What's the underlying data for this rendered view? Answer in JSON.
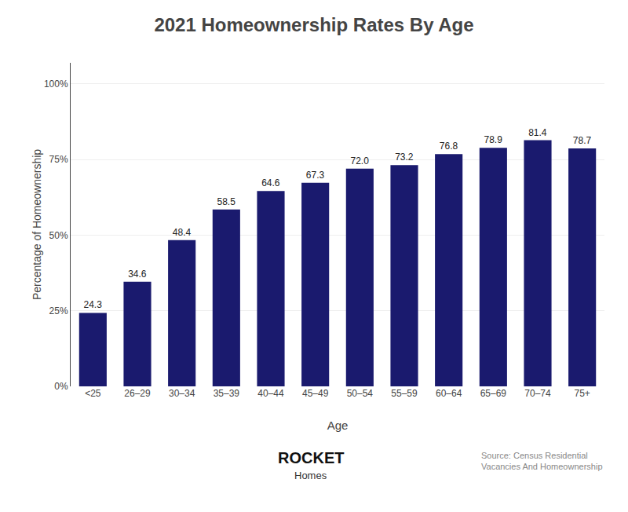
{
  "chart_data": {
    "type": "bar",
    "title": "2021 Homeownership Rates By Age",
    "categories": [
      "<25",
      "26–29",
      "30–34",
      "35–39",
      "40–44",
      "45–49",
      "50–54",
      "55–59",
      "60–64",
      "65–69",
      "70–74",
      "75+"
    ],
    "values": [
      24.3,
      34.6,
      48.4,
      58.5,
      64.6,
      67.3,
      72.0,
      73.2,
      76.8,
      78.9,
      81.4,
      78.7
    ],
    "value_labels": [
      "24.3",
      "34.6",
      "48.4",
      "58.5",
      "64.6",
      "67.3",
      "72.0",
      "73.2",
      "76.8",
      "78.9",
      "81.4",
      "78.7"
    ],
    "data_labels": true,
    "color": "#1a1a6e",
    "xlabel": "Age",
    "ylabel": "Percentage of Homeownership",
    "ylim": [
      0,
      107
    ],
    "yticks": [
      {
        "value": 0,
        "label": "0%"
      },
      {
        "value": 25,
        "label": "25%"
      },
      {
        "value": 50,
        "label": "50%"
      },
      {
        "value": 75,
        "label": "75%"
      },
      {
        "value": 100,
        "label": "100%"
      }
    ],
    "grid": true,
    "annotations": [
      "ROCKET",
      "Homes",
      "Source: Census Residential\nVacancies And Homeownership"
    ]
  }
}
